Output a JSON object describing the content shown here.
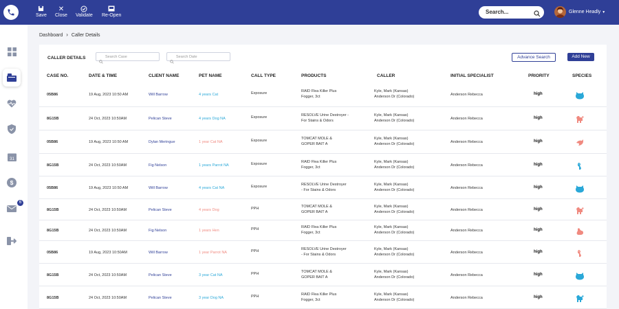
{
  "toolbar": {
    "save_label": "Save",
    "close_label": "Close",
    "validate_label": "Validate",
    "reopen_label": "Re-Open"
  },
  "search": {
    "placeholder": "Search..."
  },
  "user": {
    "name": "Glenne Headly"
  },
  "sidebar": {
    "mail_badge": "6"
  },
  "breadcrumb": {
    "root": "Dashboard",
    "current": "Caller Details"
  },
  "card": {
    "title": "CALLER DETAILS",
    "search_case_placeholder": "Search Case",
    "search_date_placeholder": "Search Date",
    "advance_search_label": "Advance Search",
    "add_new_label": "Add New"
  },
  "table": {
    "headers": {
      "case_no": "CASE NO.",
      "date_time": "DATE & TIME",
      "client_name": "CLIENT NAME",
      "pet_name": "PET NAME",
      "call_type": "CALL TYPE",
      "products": "PRODUCTS",
      "caller": "CALLER",
      "initial_specialist": "INITIAL SPECIALIST",
      "priority": "PRIORITY",
      "species": "SPECIES"
    },
    "rows": [
      {
        "case": "05B86",
        "date": "19 Aug, 2023  10:50 AM",
        "client": "Will Barrow",
        "pet": "4 years Cat",
        "pet_color": "#2aa8d8",
        "call_type": "Exposure",
        "product1": "RAID Flea Killer Plus",
        "product2": "Fogger, 3ct",
        "caller1": "Kyle, Mark (Kansas)",
        "caller2": "Anderson Dr (Colorado)",
        "specialist": "Anderson Rebecca",
        "priority": "high",
        "species_icon": "cat-icon",
        "species_color": "#2aa8d8"
      },
      {
        "case": "8G15B",
        "date": "24 Oct, 2023  10:50AM",
        "client": "Pelican Steve",
        "pet": "4 years Dog NA",
        "pet_color": "#2aa8d8",
        "call_type": "Exposure",
        "product1": "RESOLVE Urine Destroyer -",
        "product2": "For Stains & Odors",
        "caller1": "Kyle, Mark (Kansas)",
        "caller2": "Anderson Dr (Colorado)",
        "specialist": "Anderson Rebecca",
        "priority": "high",
        "species_icon": "dog-icon",
        "species_color": "#f08a80"
      },
      {
        "case": "05B86",
        "date": "19 Aug, 2023  10:50 AM",
        "client": "Dylan Meringue",
        "pet": "1 year Cat NA",
        "pet_color": "#f08a80",
        "call_type": "Exposure",
        "product1": "TOMCAT MOLE &",
        "product2": "GOPER BAIT A",
        "caller1": "Kyle, Mark (Kansas)",
        "caller2": "Anderson Dr (Colorado)",
        "specialist": "Anderson Rebecca",
        "priority": "high",
        "species_icon": "bird-icon",
        "species_color": "#f08a80"
      },
      {
        "case": "8G15B",
        "date": "24 Oct, 2023  10:50AM",
        "client": "Fig Nelson",
        "pet": "1 years Parrot NA",
        "pet_color": "#2aa8d8",
        "call_type": "Exposure",
        "product1": "RAID Flea Killer Plus",
        "product2": "Fogger, 3ct",
        "caller1": "Kyle, Mark (Kansas)",
        "caller2": "Anderson Dr (Colorado)",
        "specialist": "Anderson Rebecca",
        "priority": "high",
        "species_icon": "parrot-icon",
        "species_color": "#2aa8d8"
      },
      {
        "case": "05B86",
        "date": "19 Aug, 2023  10:50 AM",
        "client": "Will Barrow",
        "pet": "4 years Cat NA",
        "pet_color": "#2aa8d8",
        "call_type": "Exposure",
        "product1": "RESOLVE Urine Destroyer",
        "product2": "- For Stains & Odors",
        "caller1": "Kyle, Mark (Kansas)",
        "caller2": "Anderson Dr (Colorado)",
        "specialist": "Anderson Rebecca",
        "priority": "high",
        "species_icon": "cat-icon",
        "species_color": "#2aa8d8"
      },
      {
        "case": "8G15B",
        "date": "24 Oct, 2023  10:50AM",
        "client": "Pelican Steve",
        "pet": "4 years Dog",
        "pet_color": "#f08a80",
        "call_type": "PPH",
        "product1": "TOMCAT MOLE &",
        "product2": "GOPER BAIT A",
        "caller1": "Kyle, Mark (Kansas)",
        "caller2": "Anderson Dr (Colorado)",
        "specialist": "Anderson Rebecca",
        "priority": "high",
        "species_icon": "dog-icon",
        "species_color": "#f08a80"
      },
      {
        "case": "8G15B",
        "date": "24 Oct, 2023  10:50AM",
        "client": "Fig Nelson",
        "pet": "1 years Hen",
        "pet_color": "#f08a80",
        "call_type": "PPH",
        "product1": "RAID Flea Killer Plus",
        "product2": "Fogger, 3ct",
        "caller1": "Kyle, Mark (Kansas)",
        "caller2": "Anderson Dr (Colorado)",
        "specialist": "Anderson Rebecca",
        "priority": "high",
        "species_icon": "hen-icon",
        "species_color": "#f08a80"
      },
      {
        "case": "05B86",
        "date": "19 Aug, 2023  10:50AM",
        "client": "Will Barrow",
        "pet": "1 year Parrot NA",
        "pet_color": "#f08a80",
        "call_type": "PPH",
        "product1": "RESOLVE Urine Destroyer",
        "product2": "- For Stains & Odors",
        "caller1": "Kyle, Mark (Kansas)",
        "caller2": "Anderson Dr (Colorado)",
        "specialist": "Anderson Rebecca",
        "priority": "high",
        "species_icon": "parrot-icon",
        "species_color": "#f08a80"
      },
      {
        "case": "8G15B",
        "date": "24 Oct, 2023  10:50AM",
        "client": "Pelican Steve",
        "pet": "3 year Cat NA",
        "pet_color": "#2aa8d8",
        "call_type": "PPH",
        "product1": "TOMCAT MOLE &",
        "product2": "GOPER BAIT A",
        "caller1": "Kyle, Mark (Kansas)",
        "caller2": "Anderson Dr (Colorado)",
        "specialist": "Anderson Rebecca",
        "priority": "high",
        "species_icon": "cat-icon",
        "species_color": "#2aa8d8"
      },
      {
        "case": "8G15B",
        "date": "24 Oct, 2023  10:50AM",
        "client": "Pelican Steve",
        "pet": "3 year Dog NA",
        "pet_color": "#2aa8d8",
        "call_type": "PPH",
        "product1": "RAID Flea Killer Plus",
        "product2": "Fogger, 3ct",
        "caller1": "Kyle, Mark (Kansas)",
        "caller2": "Anderson Dr (Colorado)",
        "specialist": "Anderson Rebecca",
        "priority": "high",
        "species_icon": "dog-icon",
        "species_color": "#2aa8d8"
      }
    ]
  }
}
